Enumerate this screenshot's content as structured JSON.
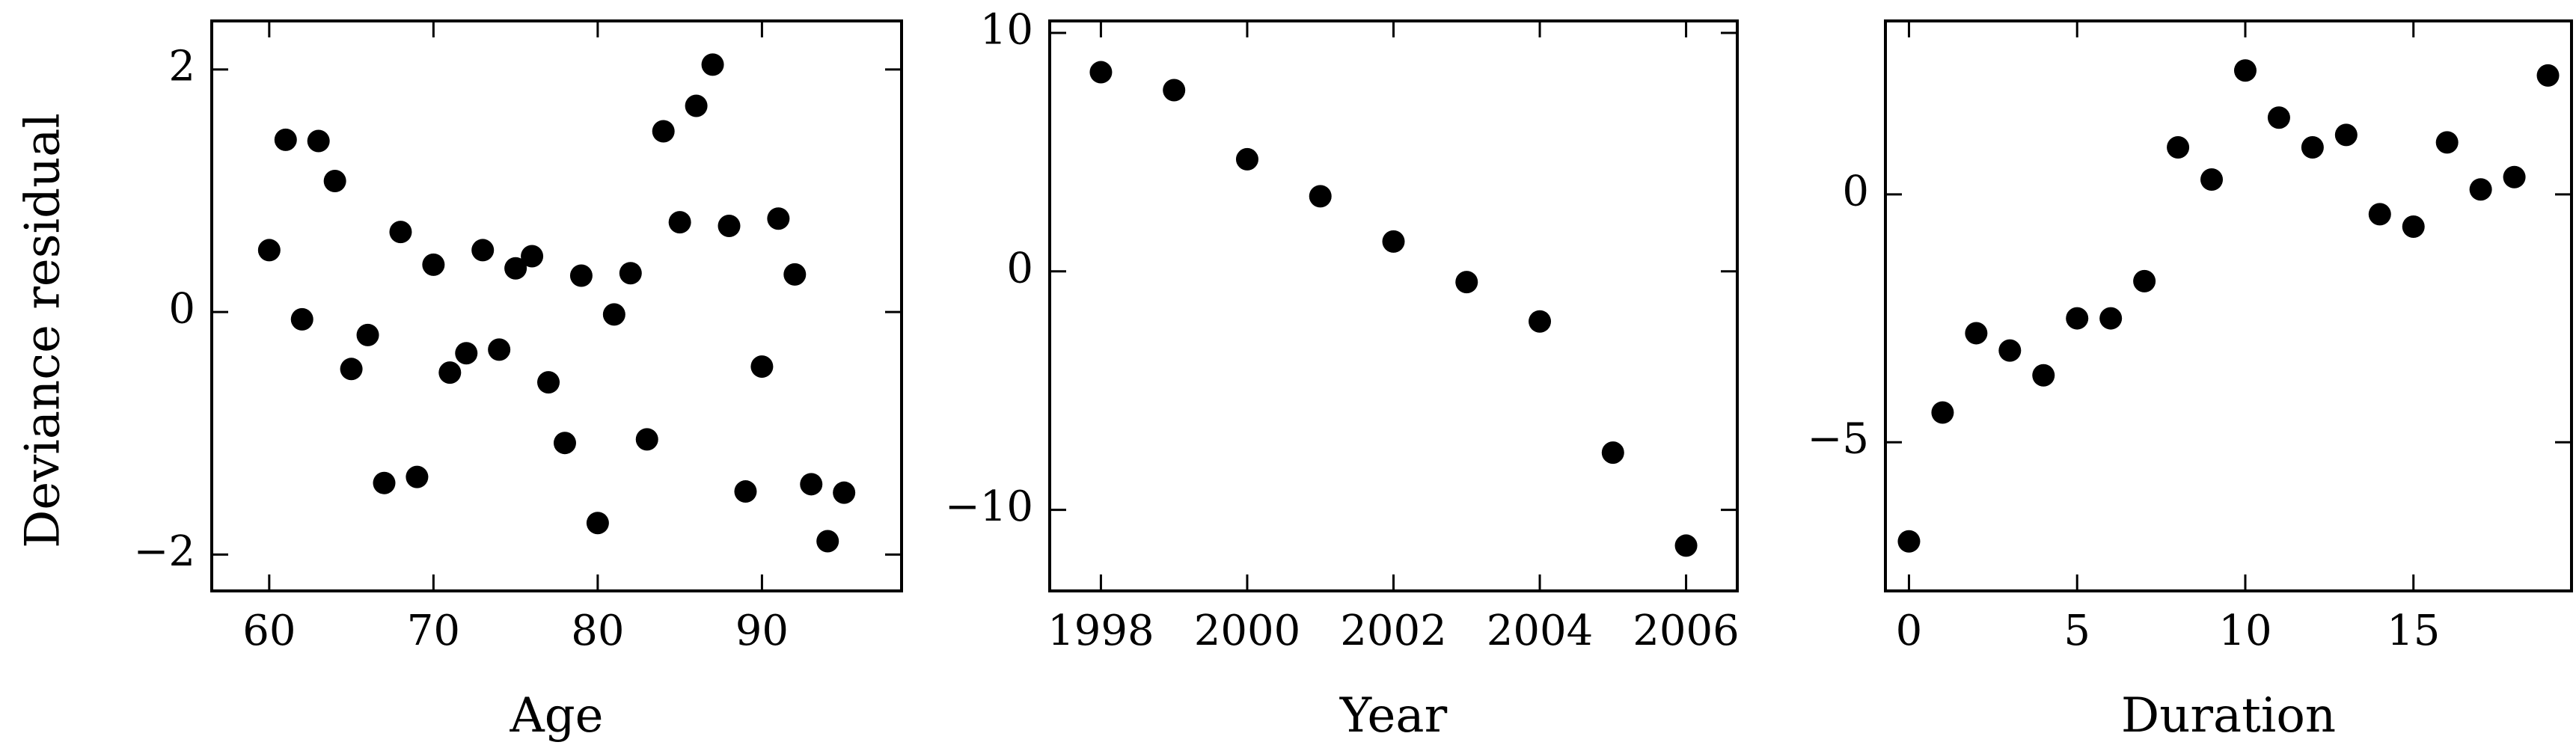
{
  "ylabel": "Deviance residual",
  "chart_data": [
    {
      "type": "scatter",
      "xlabel": "Age",
      "ylabel": "Deviance residual",
      "xlim": [
        56.5,
        98.5
      ],
      "ylim": [
        -2.3,
        2.4
      ],
      "xticks": [
        60,
        70,
        80,
        90
      ],
      "yticks": [
        -2,
        0,
        2
      ],
      "xtick_labels": [
        "60",
        "70",
        "80",
        "90"
      ],
      "ytick_labels": [
        "−2",
        "0",
        "2"
      ],
      "marker_color": "#000000",
      "grid": false,
      "points": [
        [
          60,
          0.51
        ],
        [
          61,
          1.42
        ],
        [
          62,
          -0.06
        ],
        [
          63,
          1.41
        ],
        [
          64,
          1.08
        ],
        [
          65,
          -0.47
        ],
        [
          66,
          -0.19
        ],
        [
          67,
          -1.41
        ],
        [
          68,
          0.66
        ],
        [
          69,
          -1.36
        ],
        [
          70,
          0.39
        ],
        [
          71,
          -0.5
        ],
        [
          72,
          -0.34
        ],
        [
          73,
          0.51
        ],
        [
          74,
          -0.31
        ],
        [
          75,
          0.36
        ],
        [
          76,
          0.46
        ],
        [
          77,
          -0.58
        ],
        [
          78,
          -1.08
        ],
        [
          79,
          0.3
        ],
        [
          80,
          -1.74
        ],
        [
          81,
          -0.02
        ],
        [
          82,
          0.32
        ],
        [
          83,
          -1.05
        ],
        [
          84,
          1.49
        ],
        [
          85,
          0.74
        ],
        [
          86,
          1.7
        ],
        [
          87,
          2.04
        ],
        [
          88,
          0.71
        ],
        [
          89,
          -1.48
        ],
        [
          90,
          -0.45
        ],
        [
          91,
          0.77
        ],
        [
          92,
          0.31
        ],
        [
          93,
          -1.42
        ],
        [
          94,
          -1.89
        ],
        [
          95,
          -1.49
        ]
      ]
    },
    {
      "type": "scatter",
      "xlabel": "Year",
      "ylabel": "",
      "xlim": [
        1997.3,
        2006.7
      ],
      "ylim": [
        -13.4,
        10.5
      ],
      "xticks": [
        1998,
        2000,
        2002,
        2004,
        2006
      ],
      "yticks": [
        -10,
        0,
        10
      ],
      "xtick_labels": [
        "1998",
        "2000",
        "2002",
        "2004",
        "2006"
      ],
      "ytick_labels": [
        "−10",
        "0",
        "10"
      ],
      "marker_color": "#000000",
      "grid": false,
      "points": [
        [
          1998,
          8.35
        ],
        [
          1999,
          7.6
        ],
        [
          2000,
          4.7
        ],
        [
          2001,
          3.15
        ],
        [
          2002,
          1.25
        ],
        [
          2003,
          -0.45
        ],
        [
          2004,
          -2.1
        ],
        [
          2005,
          -7.6
        ],
        [
          2006,
          -11.5
        ]
      ]
    },
    {
      "type": "scatter",
      "xlabel": "Duration",
      "ylabel": "",
      "xlim": [
        -0.7,
        19.7
      ],
      "ylim": [
        -8.0,
        3.5
      ],
      "xticks": [
        0,
        5,
        10,
        15
      ],
      "yticks": [
        -5,
        0
      ],
      "xtick_labels": [
        "0",
        "5",
        "10",
        "15"
      ],
      "ytick_labels": [
        "−5",
        "0"
      ],
      "marker_color": "#000000",
      "grid": false,
      "points": [
        [
          0,
          -7.0
        ],
        [
          1,
          -4.4
        ],
        [
          2,
          -2.8
        ],
        [
          3,
          -3.15
        ],
        [
          4,
          -3.65
        ],
        [
          5,
          -2.5
        ],
        [
          6,
          -2.5
        ],
        [
          7,
          -1.75
        ],
        [
          8,
          0.95
        ],
        [
          9,
          0.3
        ],
        [
          10,
          2.5
        ],
        [
          11,
          1.55
        ],
        [
          12,
          0.95
        ],
        [
          13,
          1.2
        ],
        [
          14,
          -0.4
        ],
        [
          15,
          -0.65
        ],
        [
          16,
          1.05
        ],
        [
          17,
          0.1
        ],
        [
          18,
          0.35
        ],
        [
          19,
          2.4
        ]
      ]
    }
  ]
}
